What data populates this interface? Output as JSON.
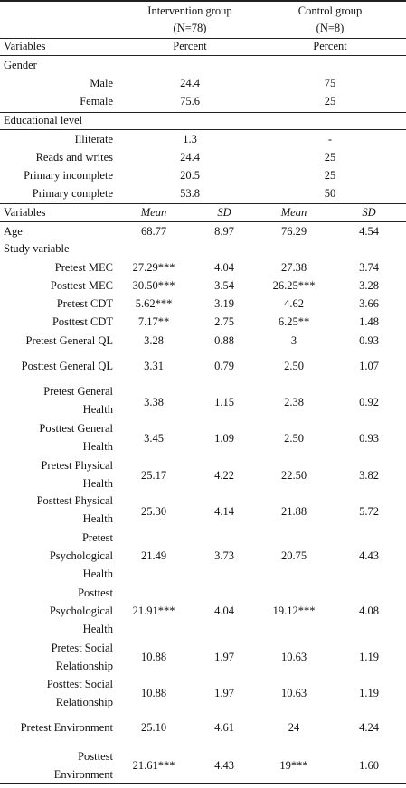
{
  "header": {
    "group_a": "Intervention group",
    "group_a_n": "(N=78)",
    "group_b": "Control group",
    "group_b_n": "(N=8)"
  },
  "percent_header": {
    "variables": "Variables",
    "col_a": "Percent",
    "col_b": "Percent"
  },
  "gender": {
    "title": "Gender",
    "rows": [
      {
        "label": "Male",
        "a": "24.4",
        "b": "75"
      },
      {
        "label": "Female",
        "a": "75.6",
        "b": "25"
      }
    ]
  },
  "education": {
    "title": "Educational level",
    "rows": [
      {
        "label": "Illiterate",
        "a": "1.3",
        "b": "-"
      },
      {
        "label": "Reads and writes",
        "a": "24.4",
        "b": "25"
      },
      {
        "label": "Primary incomplete",
        "a": "20.5",
        "b": "25"
      },
      {
        "label": "Primary complete",
        "a": "53.8",
        "b": "50"
      }
    ]
  },
  "mean_header": {
    "variables": "Variables",
    "mean_a": "Mean",
    "sd_a": "SD",
    "mean_b": "Mean",
    "sd_b": "SD"
  },
  "age": {
    "label": "Age",
    "mean_a": "68.77",
    "sd_a": "8.97",
    "mean_b": "76.29",
    "sd_b": "4.54"
  },
  "study": {
    "title": "Study variable",
    "rows": [
      {
        "l1": "Pretest MEC",
        "mean_a": "27.29***",
        "sd_a": "4.04",
        "mean_b": "27.38",
        "sd_b": "3.74"
      },
      {
        "l1": "Posttest MEC",
        "mean_a": "30.50***",
        "sd_a": "3.54",
        "mean_b": "26.25***",
        "sd_b": "3.28"
      },
      {
        "l1": "Pretest CDT",
        "mean_a": "5.62***",
        "sd_a": "3.19",
        "mean_b": "4.62",
        "sd_b": "3.66"
      },
      {
        "l1": "Posttest CDT",
        "mean_a": "7.17**",
        "sd_a": "2.75",
        "mean_b": "6.25**",
        "sd_b": "1.48"
      },
      {
        "l1": "Pretest General QL",
        "mean_a": "3.28",
        "sd_a": "0.88",
        "mean_b": "3",
        "sd_b": "0.93"
      },
      {
        "l1": "Posttest General QL",
        "mean_a": "3.31",
        "sd_a": "0.79",
        "mean_b": "2.50",
        "sd_b": "1.07"
      },
      {
        "l1": "Pretest General",
        "l2": "Health",
        "mean_a": "3.38",
        "sd_a": "1.15",
        "mean_b": "2.38",
        "sd_b": "0.92"
      },
      {
        "l1": "Posttest General",
        "l2": "Health",
        "mean_a": "3.45",
        "sd_a": "1.09",
        "mean_b": "2.50",
        "sd_b": "0.93"
      },
      {
        "l1": "Pretest Physical",
        "l2": "Health",
        "mean_a": "25.17",
        "sd_a": "4.22",
        "mean_b": "22.50",
        "sd_b": "3.82"
      },
      {
        "l1": "Posttest Physical",
        "l2": "Health",
        "mean_a": "25.30",
        "sd_a": "4.14",
        "mean_b": "21.88",
        "sd_b": "5.72"
      },
      {
        "l1": "Pretest",
        "l2": "Psychological",
        "l3": "Health",
        "mean_a": "21.49",
        "sd_a": "3.73",
        "mean_b": "20.75",
        "sd_b": "4.43"
      },
      {
        "l1": "Posttest",
        "l2": "Psychological",
        "l3": "Health",
        "mean_a": "21.91***",
        "sd_a": "4.04",
        "mean_b": "19.12***",
        "sd_b": "4.08"
      },
      {
        "l1": "Pretest Social",
        "l2": "Relationship",
        "mean_a": "10.88",
        "sd_a": "1.97",
        "mean_b": "10.63",
        "sd_b": "1.19"
      },
      {
        "l1": "Posttest Social",
        "l2": "Relationship",
        "mean_a": "10.88",
        "sd_a": "1.97",
        "mean_b": "10.63",
        "sd_b": "1.19"
      },
      {
        "l1": "Pretest Environment",
        "mean_a": "25.10",
        "sd_a": "4.61",
        "mean_b": "24",
        "sd_b": "4.24"
      },
      {
        "l1": "Posttest",
        "l2": "Environment",
        "mean_a": "21.61***",
        "sd_a": "4.43",
        "mean_b": "19***",
        "sd_b": "1.60"
      }
    ]
  }
}
